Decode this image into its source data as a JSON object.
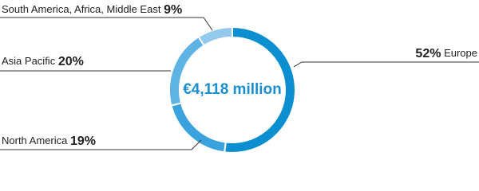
{
  "chart_data": {
    "type": "pie",
    "title": "€4,118 million",
    "categories": [
      "Europe",
      "North America",
      "Asia Pacific",
      "South America, Africa, Middle East"
    ],
    "values": [
      52,
      19,
      20,
      9
    ],
    "value_labels": [
      "52%",
      "19%",
      "20%",
      "9%"
    ],
    "colors": [
      "#0b8fd0",
      "#3aa2dc",
      "#5fb3e3",
      "#93caec"
    ]
  }
}
